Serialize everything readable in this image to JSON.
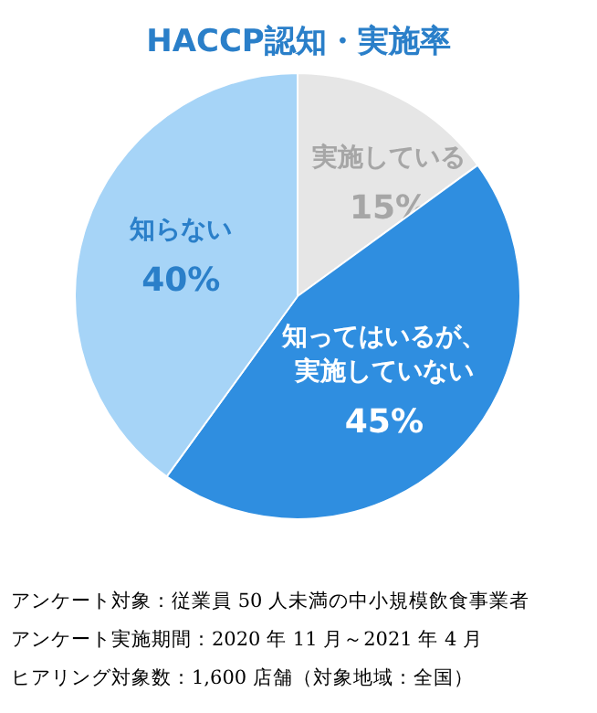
{
  "chart_data": {
    "type": "pie",
    "title": "HACCP認知・実施率",
    "categories": [
      "実施している",
      "知ってはいるが、実施していない",
      "知らない"
    ],
    "values": [
      15,
      45,
      40
    ],
    "value_labels": [
      "15%",
      "45%",
      "40%"
    ],
    "colors": [
      "#e6e6e6",
      "#2f8ee0",
      "#a6d4f7"
    ],
    "annotations": [
      "アンケート対象：従業員 50 人未満の中小規模飲食事業者",
      "アンケート実施期間：2020 年 11 月～2021 年 4 月",
      "ヒアリング対象数：1,600 店舗（対象地域：全国）"
    ]
  }
}
